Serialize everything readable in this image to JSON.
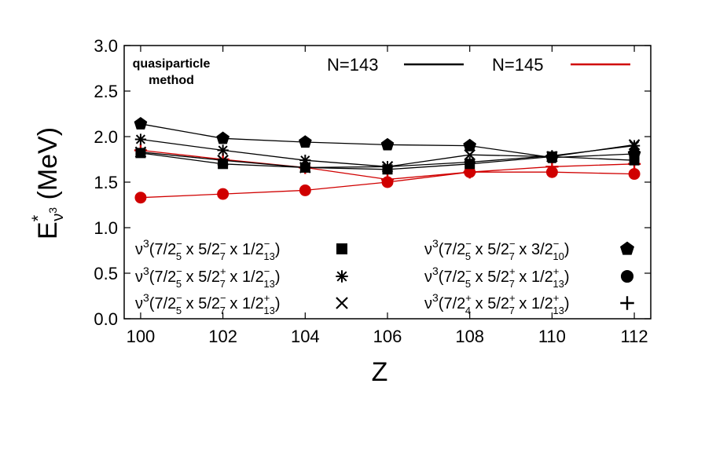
{
  "chart_data": {
    "type": "line",
    "title": "",
    "annotation": [
      "quasiparticle",
      "method"
    ],
    "xlabel": "Z",
    "ylabel": {
      "main": "E",
      "star": "*",
      "sub": "ν",
      "subsup": "3",
      "tail": " (MeV)"
    },
    "xlim": [
      99.6,
      112.4
    ],
    "ylim": [
      0.0,
      3.0
    ],
    "xticks": [
      100,
      102,
      104,
      106,
      108,
      110,
      112
    ],
    "yticks": [
      0.0,
      0.5,
      1.0,
      1.5,
      2.0,
      2.5,
      3.0
    ],
    "ytick_labels": [
      "0.0",
      "0.5",
      "1.0",
      "1.5",
      "2.0",
      "2.5",
      "3.0"
    ],
    "x": [
      100,
      102,
      104,
      106,
      108,
      110,
      112
    ],
    "isotones": [
      {
        "name": "N=143",
        "color": "#000000"
      },
      {
        "name": "N=145",
        "color": "#d00000"
      }
    ],
    "series": [
      {
        "name": "ν3(7/2−5 x 5/2−7 x 1/2−13)",
        "marker": "square",
        "N": "N=143",
        "values": [
          1.82,
          1.7,
          1.66,
          1.64,
          1.7,
          1.78,
          1.74
        ]
      },
      {
        "name": "ν3(7/2−5 x 5/2+7 x 1/2−13)",
        "marker": "asterisk",
        "N": "N=143",
        "values": [
          1.97,
          1.85,
          1.74,
          1.67,
          1.72,
          1.79,
          1.9
        ]
      },
      {
        "name": "ν3(7/2−5 x 5/2−7 x 1/2+13)",
        "marker": "x",
        "N": "N=143",
        "values": [
          1.83,
          1.74,
          1.66,
          1.67,
          1.8,
          1.78,
          1.91
        ]
      },
      {
        "name": "ν3(7/2−5 x 5/2−7 x 3/2−10)",
        "marker": "pentagon",
        "N": "N=143",
        "values": [
          2.14,
          1.98,
          1.94,
          1.91,
          1.9,
          1.77,
          1.81
        ]
      },
      {
        "name": "ν3(7/2−5 x 5/2+7 x 1/2+13)",
        "marker": "circle",
        "N": "N=145",
        "values": [
          1.33,
          1.37,
          1.41,
          1.5,
          1.61,
          1.61,
          1.59
        ]
      },
      {
        "name": "ν3(7/2+4 x 5/2+7 x 1/2+13)",
        "marker": "plus",
        "N": "N=145",
        "values": [
          1.85,
          1.75,
          1.66,
          1.53,
          1.61,
          1.67,
          1.7
        ]
      }
    ],
    "legend": [
      {
        "marker": "square",
        "j1": "7/2",
        "p1": "−",
        "s1": "5",
        "j2": "5/2",
        "p2": "−",
        "s2": "7",
        "j3": "1/2",
        "p3": "−",
        "s3": "13"
      },
      {
        "marker": "asterisk",
        "j1": "7/2",
        "p1": "−",
        "s1": "5",
        "j2": "5/2",
        "p2": "+",
        "s2": "7",
        "j3": "1/2",
        "p3": "−",
        "s3": "13"
      },
      {
        "marker": "x",
        "j1": "7/2",
        "p1": "−",
        "s1": "5",
        "j2": "5/2",
        "p2": "−",
        "s2": "7",
        "j3": "1/2",
        "p3": "+",
        "s3": "13"
      },
      {
        "marker": "pentagon",
        "j1": "7/2",
        "p1": "−",
        "s1": "5",
        "j2": "5/2",
        "p2": "−",
        "s2": "7",
        "j3": "3/2",
        "p3": "−",
        "s3": "10"
      },
      {
        "marker": "circle",
        "j1": "7/2",
        "p1": "−",
        "s1": "5",
        "j2": "5/2",
        "p2": "+",
        "s2": "7",
        "j3": "1/2",
        "p3": "+",
        "s3": "13"
      },
      {
        "marker": "plus",
        "j1": "7/2",
        "p1": "+",
        "s1": "4",
        "j2": "5/2",
        "p2": "+",
        "s2": "7",
        "j3": "1/2",
        "p3": "+",
        "s3": "13"
      }
    ],
    "legend_prefix": "ν",
    "legend_power": "3",
    "legend_times": " x ",
    "grid": false
  }
}
